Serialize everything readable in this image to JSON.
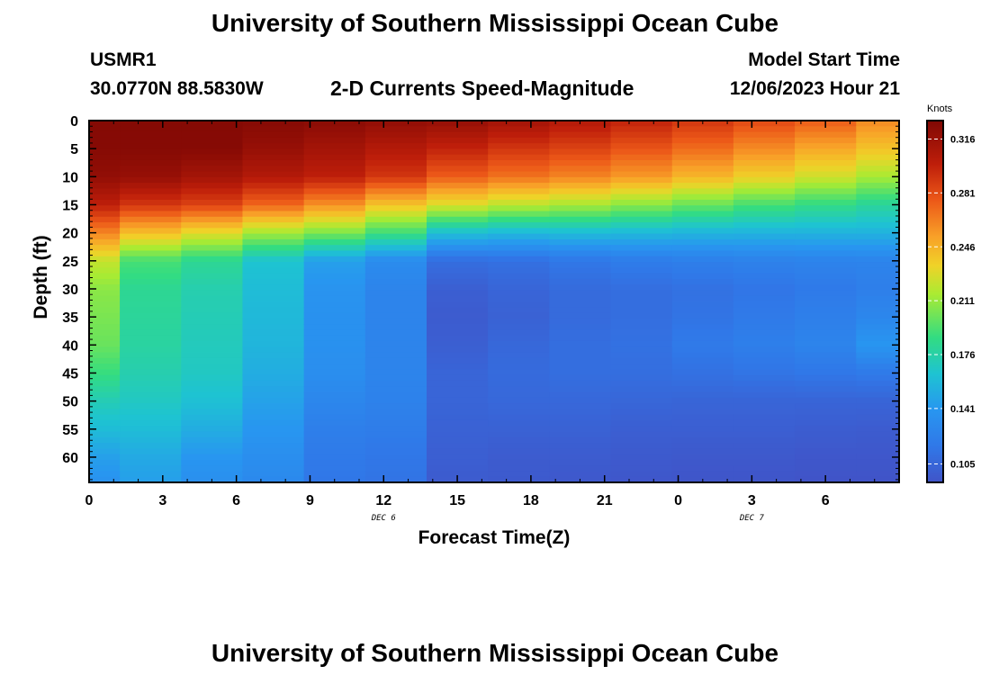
{
  "page": {
    "title": "University of Southern Mississippi Ocean Cube",
    "footer_title": "University of Southern Mississippi Ocean Cube",
    "station_id": "USMR1",
    "coordinates": "30.0770N  88.5830W",
    "subtitle": "2-D Currents Speed-Magnitude",
    "model_label": "Model Start Time",
    "model_time": "12/06/2023 Hour 21"
  },
  "chart_data": {
    "type": "heatmap",
    "title": "2-D Currents Speed-Magnitude",
    "xlabel": "Forecast Time(Z)",
    "ylabel": "Depth (ft)",
    "x_ticks": [
      "0",
      "3",
      "6",
      "9",
      "12",
      "15",
      "18",
      "21",
      "0",
      "3",
      "6"
    ],
    "x_range": [
      0,
      33
    ],
    "date_labels": [
      {
        "label": "DEC 6",
        "x": 12
      },
      {
        "label": "DEC 7",
        "x": 27
      }
    ],
    "y_ticks": [
      "0",
      "5",
      "10",
      "15",
      "20",
      "25",
      "30",
      "35",
      "40",
      "45",
      "50",
      "55",
      "60"
    ],
    "y_range": [
      0,
      64.5
    ],
    "colorbar": {
      "label": "Knots",
      "range": [
        0.093,
        0.328
      ],
      "ticks": [
        "0.316",
        "0.281",
        "0.246",
        "0.211",
        "0.176",
        "0.141",
        "0.105"
      ],
      "tick_values": [
        0.316,
        0.281,
        0.246,
        0.211,
        0.176,
        0.141,
        0.105
      ]
    },
    "time_steps_hours": [
      0,
      2.5,
      5,
      7.5,
      10,
      12.5,
      15,
      17.5,
      20,
      22.5,
      25,
      27.5,
      30,
      32.5
    ],
    "depth_levels_ft": [
      0,
      5,
      10,
      15,
      20,
      25,
      30,
      35,
      40,
      45,
      50,
      55,
      60,
      64
    ],
    "speed_profiles_knots": [
      [
        0.326,
        0.325,
        0.32,
        0.3,
        0.262,
        0.222,
        0.208,
        0.204,
        0.2,
        0.188,
        0.172,
        0.16,
        0.145,
        0.138
      ],
      [
        0.326,
        0.325,
        0.318,
        0.29,
        0.242,
        0.192,
        0.182,
        0.18,
        0.178,
        0.174,
        0.168,
        0.16,
        0.15,
        0.145
      ],
      [
        0.326,
        0.325,
        0.312,
        0.285,
        0.23,
        0.182,
        0.174,
        0.172,
        0.17,
        0.168,
        0.162,
        0.152,
        0.14,
        0.135
      ],
      [
        0.325,
        0.318,
        0.305,
        0.272,
        0.214,
        0.164,
        0.16,
        0.158,
        0.156,
        0.152,
        0.146,
        0.14,
        0.134,
        0.13
      ],
      [
        0.323,
        0.312,
        0.3,
        0.258,
        0.205,
        0.145,
        0.138,
        0.136,
        0.136,
        0.134,
        0.128,
        0.122,
        0.118,
        0.116
      ],
      [
        0.32,
        0.305,
        0.29,
        0.24,
        0.19,
        0.132,
        0.126,
        0.126,
        0.126,
        0.126,
        0.124,
        0.12,
        0.116,
        0.114
      ],
      [
        0.318,
        0.298,
        0.275,
        0.228,
        0.162,
        0.11,
        0.1,
        0.098,
        0.1,
        0.104,
        0.104,
        0.102,
        0.1,
        0.098
      ],
      [
        0.312,
        0.29,
        0.268,
        0.22,
        0.158,
        0.112,
        0.104,
        0.102,
        0.106,
        0.108,
        0.106,
        0.102,
        0.098,
        0.097
      ],
      [
        0.305,
        0.285,
        0.262,
        0.215,
        0.16,
        0.116,
        0.108,
        0.108,
        0.11,
        0.11,
        0.106,
        0.102,
        0.098,
        0.096
      ],
      [
        0.298,
        0.278,
        0.255,
        0.208,
        0.158,
        0.12,
        0.11,
        0.11,
        0.112,
        0.11,
        0.105,
        0.1,
        0.097,
        0.095
      ],
      [
        0.29,
        0.27,
        0.245,
        0.2,
        0.156,
        0.122,
        0.112,
        0.114,
        0.118,
        0.112,
        0.104,
        0.1,
        0.096,
        0.094
      ],
      [
        0.282,
        0.26,
        0.235,
        0.192,
        0.155,
        0.124,
        0.115,
        0.118,
        0.122,
        0.114,
        0.104,
        0.1,
        0.096,
        0.094
      ],
      [
        0.275,
        0.25,
        0.225,
        0.186,
        0.155,
        0.125,
        0.118,
        0.122,
        0.126,
        0.116,
        0.104,
        0.099,
        0.095,
        0.093
      ],
      [
        0.26,
        0.24,
        0.215,
        0.18,
        0.155,
        0.126,
        0.122,
        0.128,
        0.14,
        0.118,
        0.104,
        0.098,
        0.095,
        0.093
      ]
    ]
  }
}
